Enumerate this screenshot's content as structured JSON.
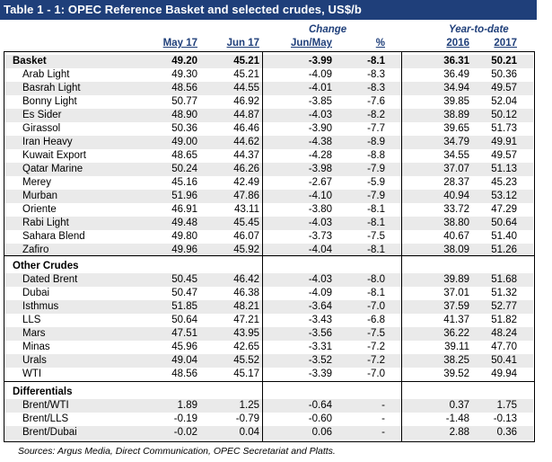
{
  "title": "Table 1 - 1: OPEC Reference Basket and selected crudes, US$/b",
  "headers": {
    "change": "Change",
    "ytd": "Year-to-date",
    "may17": "May 17",
    "jun17": "Jun 17",
    "junmay": "Jun/May",
    "pct": "%",
    "y2016": "2016",
    "y2017": "2017"
  },
  "basket": {
    "label": "Basket",
    "values": [
      "49.20",
      "45.21",
      "-3.99",
      "-8.1",
      "36.31",
      "50.21"
    ]
  },
  "basket_rows": [
    {
      "name": "Arab Light",
      "values": [
        "49.30",
        "45.21",
        "-4.09",
        "-8.3",
        "36.49",
        "50.36"
      ]
    },
    {
      "name": "Basrah Light",
      "values": [
        "48.56",
        "44.55",
        "-4.01",
        "-8.3",
        "34.94",
        "49.57"
      ]
    },
    {
      "name": "Bonny Light",
      "values": [
        "50.77",
        "46.92",
        "-3.85",
        "-7.6",
        "39.85",
        "52.04"
      ]
    },
    {
      "name": "Es Sider",
      "values": [
        "48.90",
        "44.87",
        "-4.03",
        "-8.2",
        "38.89",
        "50.12"
      ]
    },
    {
      "name": "Girassol",
      "values": [
        "50.36",
        "46.46",
        "-3.90",
        "-7.7",
        "39.65",
        "51.73"
      ]
    },
    {
      "name": "Iran Heavy",
      "values": [
        "49.00",
        "44.62",
        "-4.38",
        "-8.9",
        "34.79",
        "49.91"
      ]
    },
    {
      "name": "Kuwait Export",
      "values": [
        "48.65",
        "44.37",
        "-4.28",
        "-8.8",
        "34.55",
        "49.57"
      ]
    },
    {
      "name": "Qatar Marine",
      "values": [
        "50.24",
        "46.26",
        "-3.98",
        "-7.9",
        "37.07",
        "51.13"
      ]
    },
    {
      "name": "Merey",
      "values": [
        "45.16",
        "42.49",
        "-2.67",
        "-5.9",
        "28.37",
        "45.23"
      ]
    },
    {
      "name": "Murban",
      "values": [
        "51.96",
        "47.86",
        "-4.10",
        "-7.9",
        "40.94",
        "53.12"
      ]
    },
    {
      "name": "Oriente",
      "values": [
        "46.91",
        "43.11",
        "-3.80",
        "-8.1",
        "33.72",
        "47.29"
      ]
    },
    {
      "name": "Rabi Light",
      "values": [
        "49.48",
        "45.45",
        "-4.03",
        "-8.1",
        "38.80",
        "50.64"
      ]
    },
    {
      "name": "Sahara Blend",
      "values": [
        "49.80",
        "46.07",
        "-3.73",
        "-7.5",
        "40.67",
        "51.40"
      ]
    },
    {
      "name": "Zafiro",
      "values": [
        "49.96",
        "45.92",
        "-4.04",
        "-8.1",
        "38.09",
        "51.26"
      ]
    }
  ],
  "other": {
    "label": "Other Crudes",
    "rows": [
      {
        "name": "Dated Brent",
        "values": [
          "50.45",
          "46.42",
          "-4.03",
          "-8.0",
          "39.89",
          "51.68"
        ]
      },
      {
        "name": "Dubai",
        "values": [
          "50.47",
          "46.38",
          "-4.09",
          "-8.1",
          "37.01",
          "51.32"
        ]
      },
      {
        "name": "Isthmus",
        "values": [
          "51.85",
          "48.21",
          "-3.64",
          "-7.0",
          "37.59",
          "52.77"
        ]
      },
      {
        "name": "LLS",
        "values": [
          "50.64",
          "47.21",
          "-3.43",
          "-6.8",
          "41.37",
          "51.82"
        ]
      },
      {
        "name": "Mars",
        "values": [
          "47.51",
          "43.95",
          "-3.56",
          "-7.5",
          "36.22",
          "48.24"
        ]
      },
      {
        "name": "Minas",
        "values": [
          "45.96",
          "42.65",
          "-3.31",
          "-7.2",
          "39.11",
          "47.70"
        ]
      },
      {
        "name": "Urals",
        "values": [
          "49.04",
          "45.52",
          "-3.52",
          "-7.2",
          "38.25",
          "50.41"
        ]
      },
      {
        "name": "WTI",
        "values": [
          "48.56",
          "45.17",
          "-3.39",
          "-7.0",
          "39.52",
          "49.94"
        ]
      }
    ]
  },
  "diff": {
    "label": "Differentials",
    "rows": [
      {
        "name": "Brent/WTI",
        "values": [
          "1.89",
          "1.25",
          "-0.64",
          "-",
          "0.37",
          "1.75"
        ]
      },
      {
        "name": "Brent/LLS",
        "values": [
          "-0.19",
          "-0.79",
          "-0.60",
          "-",
          "-1.48",
          "-0.13"
        ]
      },
      {
        "name": "Brent/Dubai",
        "values": [
          "-0.02",
          "0.04",
          "0.06",
          "-",
          "2.88",
          "0.36"
        ]
      }
    ]
  },
  "source": "Sources: Argus Media, Direct Communication, OPEC Secretariat and Platts."
}
